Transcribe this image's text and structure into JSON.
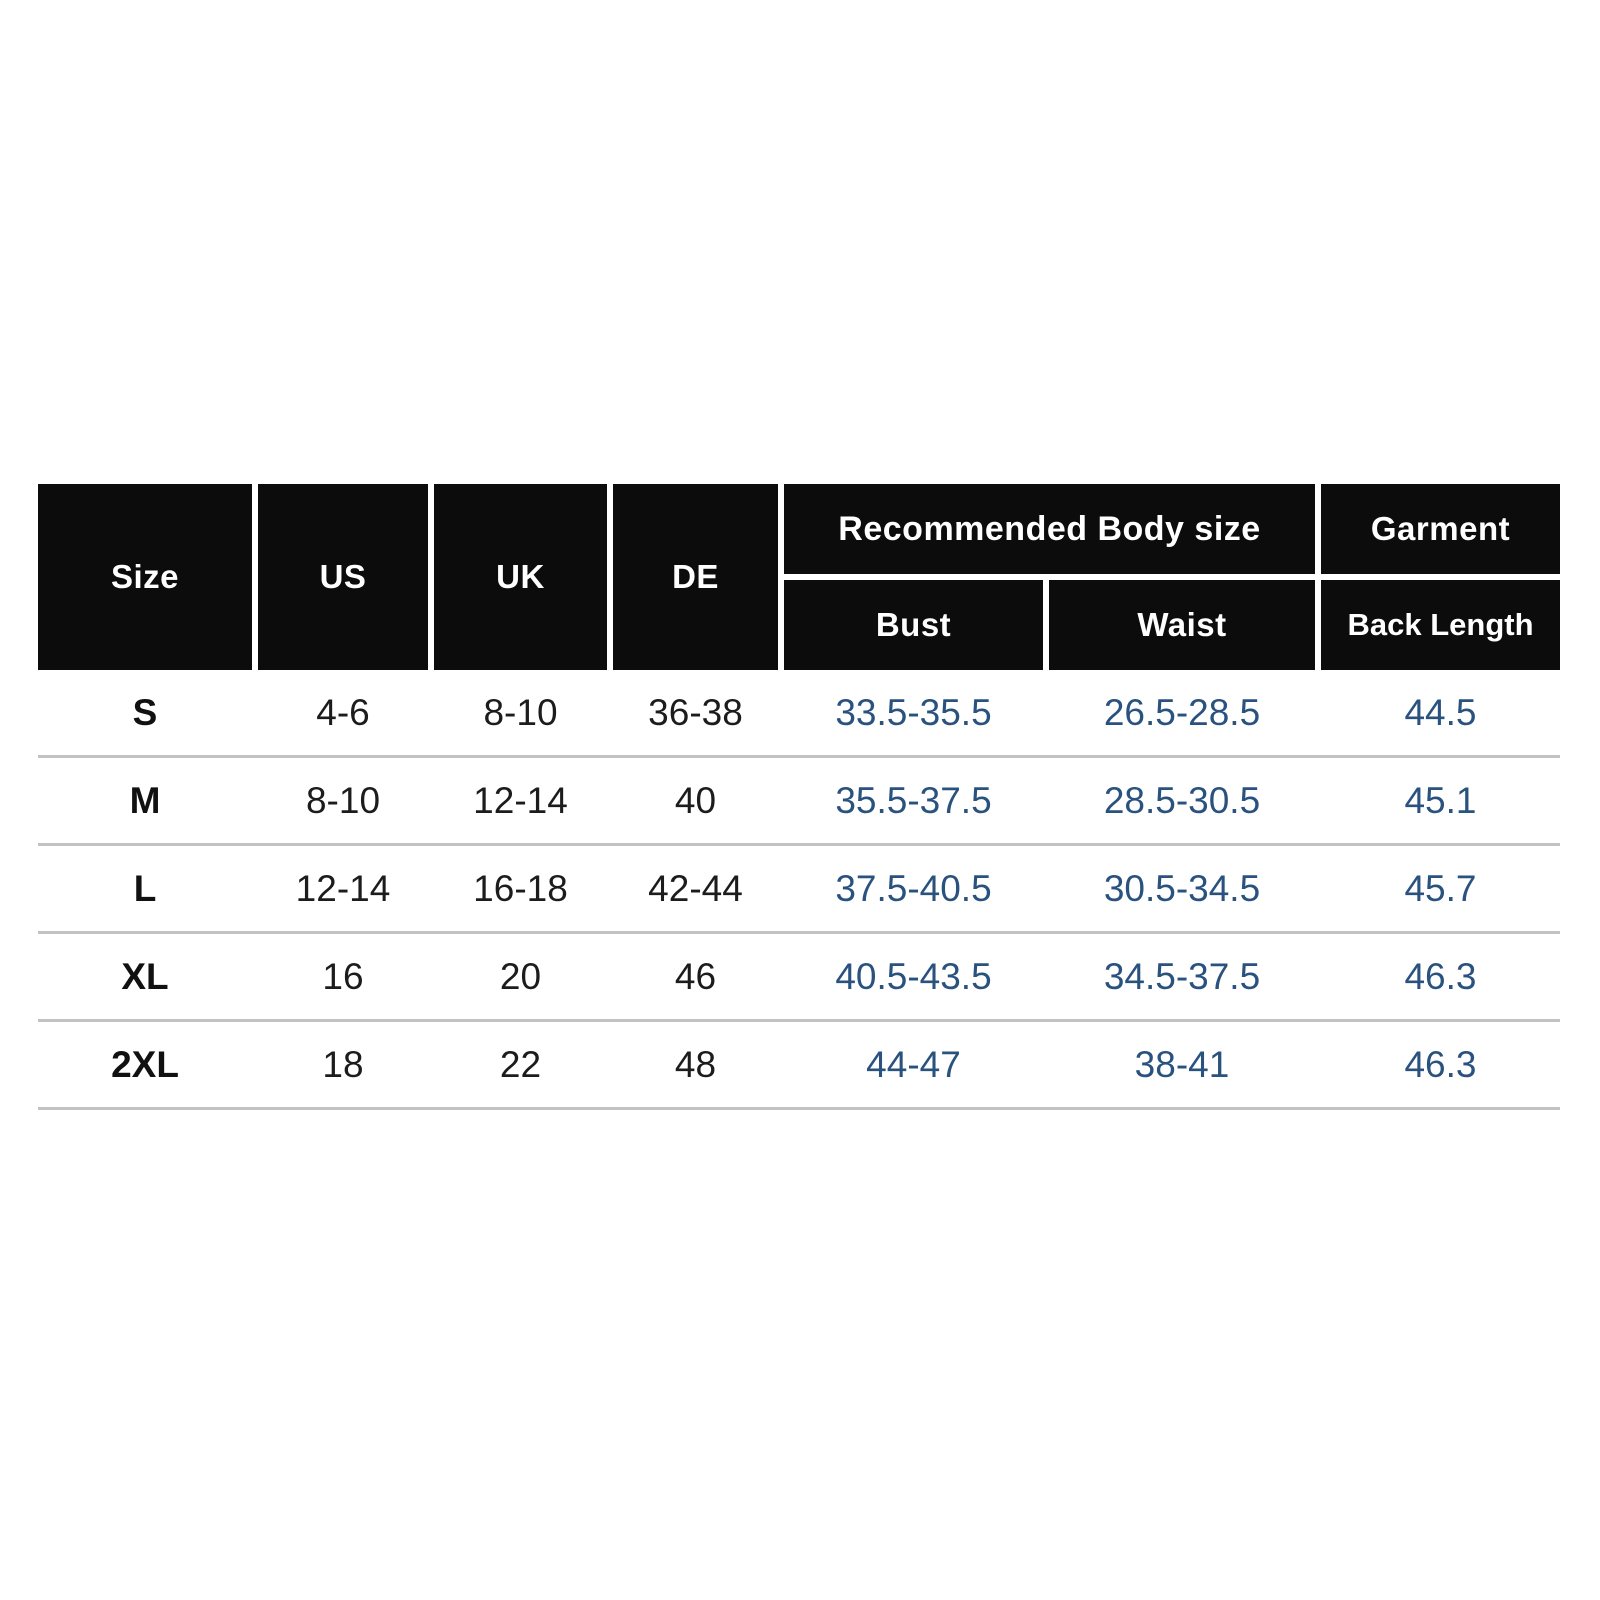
{
  "chart_data": {
    "type": "table",
    "header": {
      "size": "Size",
      "us": "US",
      "uk": "UK",
      "de": "DE",
      "recommended": "Recommended Body size",
      "garment": "Garment",
      "bust": "Bust",
      "waist": "Waist",
      "back_length": "Back Length"
    },
    "columns": [
      "Size",
      "US",
      "UK",
      "DE",
      "Bust",
      "Waist",
      "Back Length"
    ],
    "column_groups": [
      {
        "label": "Recommended Body size",
        "spans": [
          "Bust",
          "Waist"
        ]
      },
      {
        "label": "Garment",
        "spans": [
          "Back Length"
        ]
      }
    ],
    "rows": [
      [
        "S",
        "4-6",
        "8-10",
        "36-38",
        "33.5-35.5",
        "26.5-28.5",
        "44.5"
      ],
      [
        "M",
        "8-10",
        "12-14",
        "40",
        "35.5-37.5",
        "28.5-30.5",
        "45.1"
      ],
      [
        "L",
        "12-14",
        "16-18",
        "42-44",
        "37.5-40.5",
        "30.5-34.5",
        "45.7"
      ],
      [
        "XL",
        "16",
        "20",
        "46",
        "40.5-43.5",
        "34.5-37.5",
        "46.3"
      ],
      [
        "2XL",
        "18",
        "22",
        "48",
        "44-47",
        "38-41",
        "46.3"
      ]
    ],
    "colors": {
      "header_background": "#0c0c0c",
      "header_text": "#ffffff",
      "body_text": "#1c1c1c",
      "measurement_text": "#2a527e",
      "row_divider": "#c2c2c2",
      "page_background": "#ffffff"
    },
    "layout_hints": {
      "grid": "row dividers only, no vertical lines in body",
      "header_merged_cells": "Size/US/UK/DE span both header rows"
    }
  }
}
